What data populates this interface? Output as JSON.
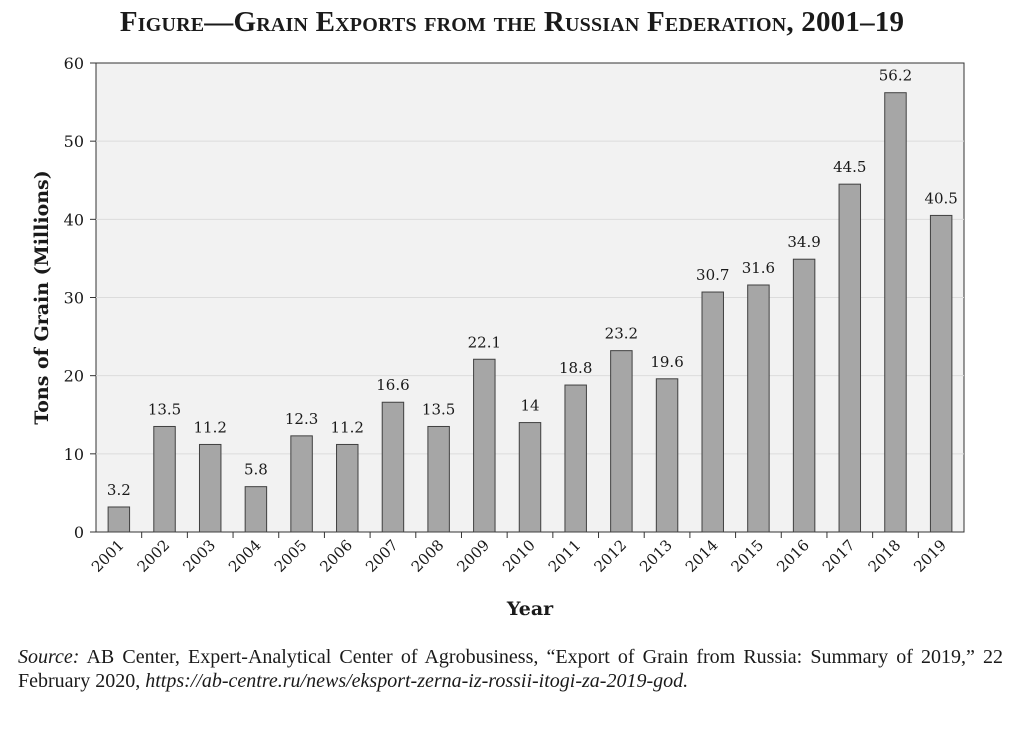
{
  "figure": {
    "title": "Figure—Grain Exports from the Russian Federation, 2001–19"
  },
  "chart_data": {
    "type": "bar",
    "categories": [
      "2001",
      "2002",
      "2003",
      "2004",
      "2005",
      "2006",
      "2007",
      "2008",
      "2009",
      "2010",
      "2011",
      "2012",
      "2013",
      "2014",
      "2015",
      "2016",
      "2017",
      "2018",
      "2019"
    ],
    "values": [
      3.2,
      13.5,
      11.2,
      5.8,
      12.3,
      11.2,
      16.6,
      13.5,
      22.1,
      14,
      18.8,
      23.2,
      19.6,
      30.7,
      31.6,
      34.9,
      44.5,
      56.2,
      40.5
    ],
    "value_labels": [
      "3.2",
      "13.5",
      "11.2",
      "5.8",
      "12.3",
      "11.2",
      "16.6",
      "13.5",
      "22.1",
      "14",
      "18.8",
      "23.2",
      "19.6",
      "30.7",
      "31.6",
      "34.9",
      "44.5",
      "56.2",
      "40.5"
    ],
    "xlabel": "Year",
    "ylabel": "Tons of Grain (Millions)",
    "ylim": [
      0,
      60
    ],
    "yticks": [
      "0",
      "10",
      "20",
      "30",
      "40",
      "50",
      "60"
    ],
    "grid": true,
    "colors": {
      "bar_fill": "#a6a6a6",
      "bar_stroke": "#404040",
      "plot_background": "#f2f2f2",
      "gridline": "#dcdcdc"
    }
  },
  "source": {
    "label": "Source:",
    "text": " AB Center, Expert-Analytical Center of Agrobusiness, “Export of Grain from Russia: Summary of 2019,” 22 February 2020, ",
    "url": "https://ab-centre.ru/news/eksport-zerna-iz-rossii-itogi-za-2019-god."
  }
}
